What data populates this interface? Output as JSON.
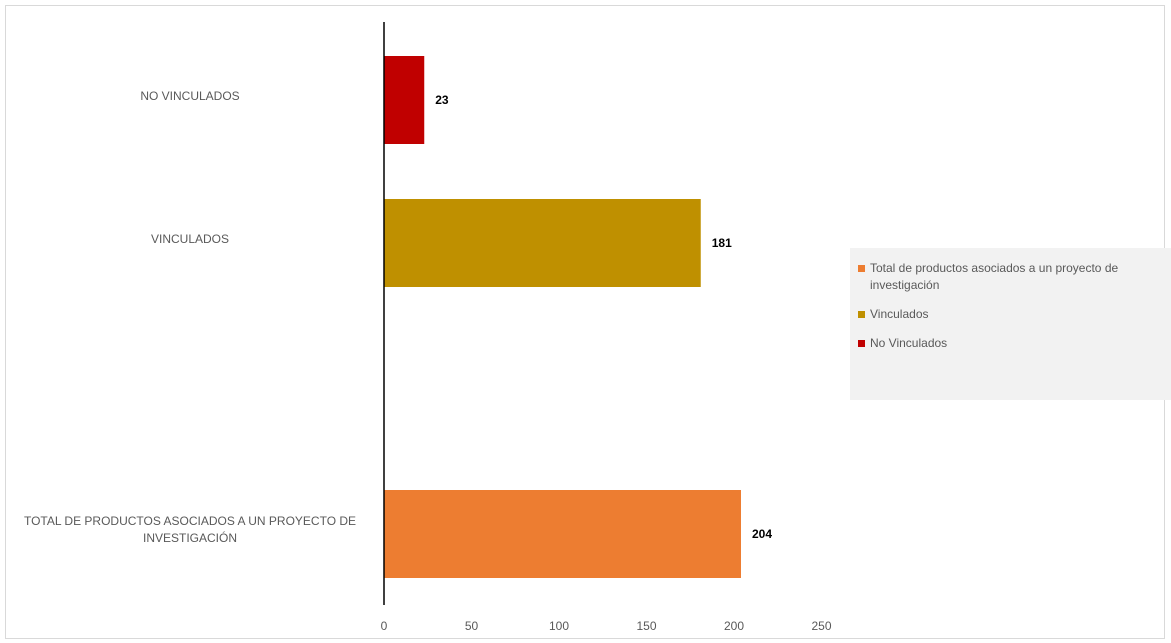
{
  "chart_data": {
    "type": "bar",
    "orientation": "horizontal",
    "categories": [
      "NO VINCULADOS",
      "VINCULADOS",
      "TOTAL DE PRODUCTOS ASOCIADOS A UN PROYECTO DE INVESTIGACIÓN"
    ],
    "category_lines": [
      [
        "NO VINCULADOS"
      ],
      [
        "VINCULADOS"
      ],
      [
        "TOTAL DE PRODUCTOS ASOCIADOS A UN PROYECTO DE",
        "INVESTIGACIÓN"
      ]
    ],
    "values": [
      23,
      181,
      204
    ],
    "colors": [
      "#c00000",
      "#bf9000",
      "#ed7d31"
    ],
    "xlim": [
      0,
      250
    ],
    "xticks": [
      0,
      50,
      100,
      150,
      200,
      250
    ],
    "grid": false,
    "legend_position": "right",
    "legend": [
      {
        "label": "Total de productos asociados a un proyecto de investigación",
        "color": "#ed7d31"
      },
      {
        "label": "Vinculados",
        "color": "#bf9000"
      },
      {
        "label": "No Vinculados",
        "color": "#c00000"
      }
    ]
  }
}
